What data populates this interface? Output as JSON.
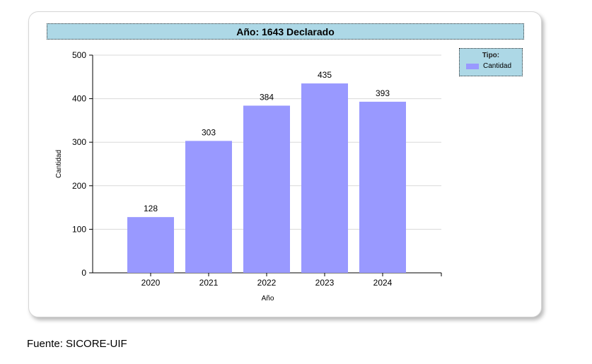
{
  "chart_data": {
    "type": "bar",
    "title": "Año: 1643 Declarado",
    "categories": [
      "2020",
      "2021",
      "2022",
      "2023",
      "2024"
    ],
    "series": [
      {
        "name": "Cantidad",
        "values": [
          128,
          303,
          384,
          435,
          393
        ]
      }
    ],
    "xlabel": "Año",
    "ylabel": "Cantidad",
    "ylim": [
      0,
      500
    ],
    "yticks": [
      0,
      100,
      200,
      300,
      400,
      500
    ],
    "grid": true,
    "legend_title": "Tipo:",
    "legend_position": "right",
    "bar_color": "#9999ff"
  },
  "source": "Fuente: SICORE-UIF"
}
